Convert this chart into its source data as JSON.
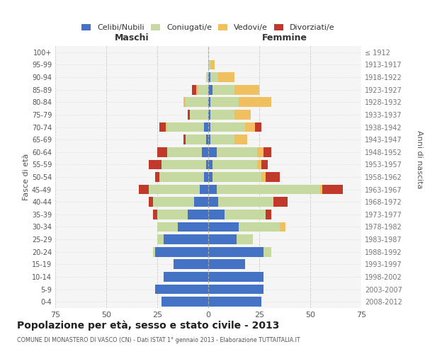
{
  "age_groups": [
    "0-4",
    "5-9",
    "10-14",
    "15-19",
    "20-24",
    "25-29",
    "30-34",
    "35-39",
    "40-44",
    "45-49",
    "50-54",
    "55-59",
    "60-64",
    "65-69",
    "70-74",
    "75-79",
    "80-84",
    "85-89",
    "90-94",
    "95-99",
    "100+"
  ],
  "birth_years": [
    "2008-2012",
    "2003-2007",
    "1998-2002",
    "1993-1997",
    "1988-1992",
    "1983-1987",
    "1978-1982",
    "1973-1977",
    "1968-1972",
    "1963-1967",
    "1958-1962",
    "1953-1957",
    "1948-1952",
    "1943-1947",
    "1938-1942",
    "1933-1937",
    "1928-1932",
    "1923-1927",
    "1918-1922",
    "1913-1917",
    "≤ 1912"
  ],
  "colors": {
    "celibi": "#4472C4",
    "coniugati": "#c5d9a0",
    "vedovi": "#f0c060",
    "divorziati": "#c0392b"
  },
  "maschi": {
    "celibi": [
      23,
      26,
      22,
      17,
      26,
      22,
      15,
      10,
      7,
      4,
      2,
      1,
      3,
      1,
      2,
      0,
      0,
      0,
      0,
      0,
      0
    ],
    "coniugati": [
      0,
      0,
      0,
      0,
      1,
      3,
      10,
      15,
      20,
      25,
      22,
      22,
      17,
      10,
      18,
      9,
      11,
      5,
      1,
      0,
      0
    ],
    "vedovi": [
      0,
      0,
      0,
      0,
      0,
      0,
      0,
      0,
      0,
      0,
      0,
      0,
      0,
      0,
      1,
      0,
      1,
      1,
      0,
      0,
      0
    ],
    "divorziati": [
      0,
      0,
      0,
      0,
      0,
      0,
      0,
      2,
      2,
      5,
      2,
      6,
      5,
      1,
      3,
      1,
      0,
      2,
      0,
      0,
      0
    ]
  },
  "femmine": {
    "celibi": [
      26,
      27,
      27,
      18,
      27,
      14,
      15,
      8,
      5,
      4,
      2,
      2,
      4,
      1,
      1,
      1,
      1,
      2,
      1,
      0,
      0
    ],
    "coniugati": [
      0,
      0,
      0,
      0,
      4,
      8,
      20,
      20,
      27,
      51,
      24,
      22,
      20,
      12,
      17,
      12,
      14,
      11,
      4,
      1,
      0
    ],
    "vedovi": [
      0,
      0,
      0,
      0,
      0,
      0,
      3,
      0,
      0,
      1,
      2,
      2,
      3,
      6,
      5,
      8,
      16,
      12,
      8,
      2,
      0
    ],
    "divorziati": [
      0,
      0,
      0,
      0,
      0,
      0,
      0,
      3,
      7,
      10,
      7,
      3,
      4,
      0,
      3,
      0,
      0,
      0,
      0,
      0,
      0
    ]
  },
  "xlim": 75,
  "title": "Popolazione per età, sesso e stato civile - 2013",
  "subtitle": "COMUNE DI MONASTERO DI VASCO (CN) - Dati ISTAT 1° gennaio 2013 - Elaborazione TUTTAITALIA.IT",
  "ylabel_left": "Fasce di età",
  "ylabel_right": "Anni di nascita",
  "xlabel_maschi": "Maschi",
  "xlabel_femmine": "Femmine",
  "legend_labels": [
    "Celibi/Nubili",
    "Coniugati/e",
    "Vedovi/e",
    "Divorziati/e"
  ],
  "bg_color": "#ffffff",
  "grid_color": "#cccccc"
}
